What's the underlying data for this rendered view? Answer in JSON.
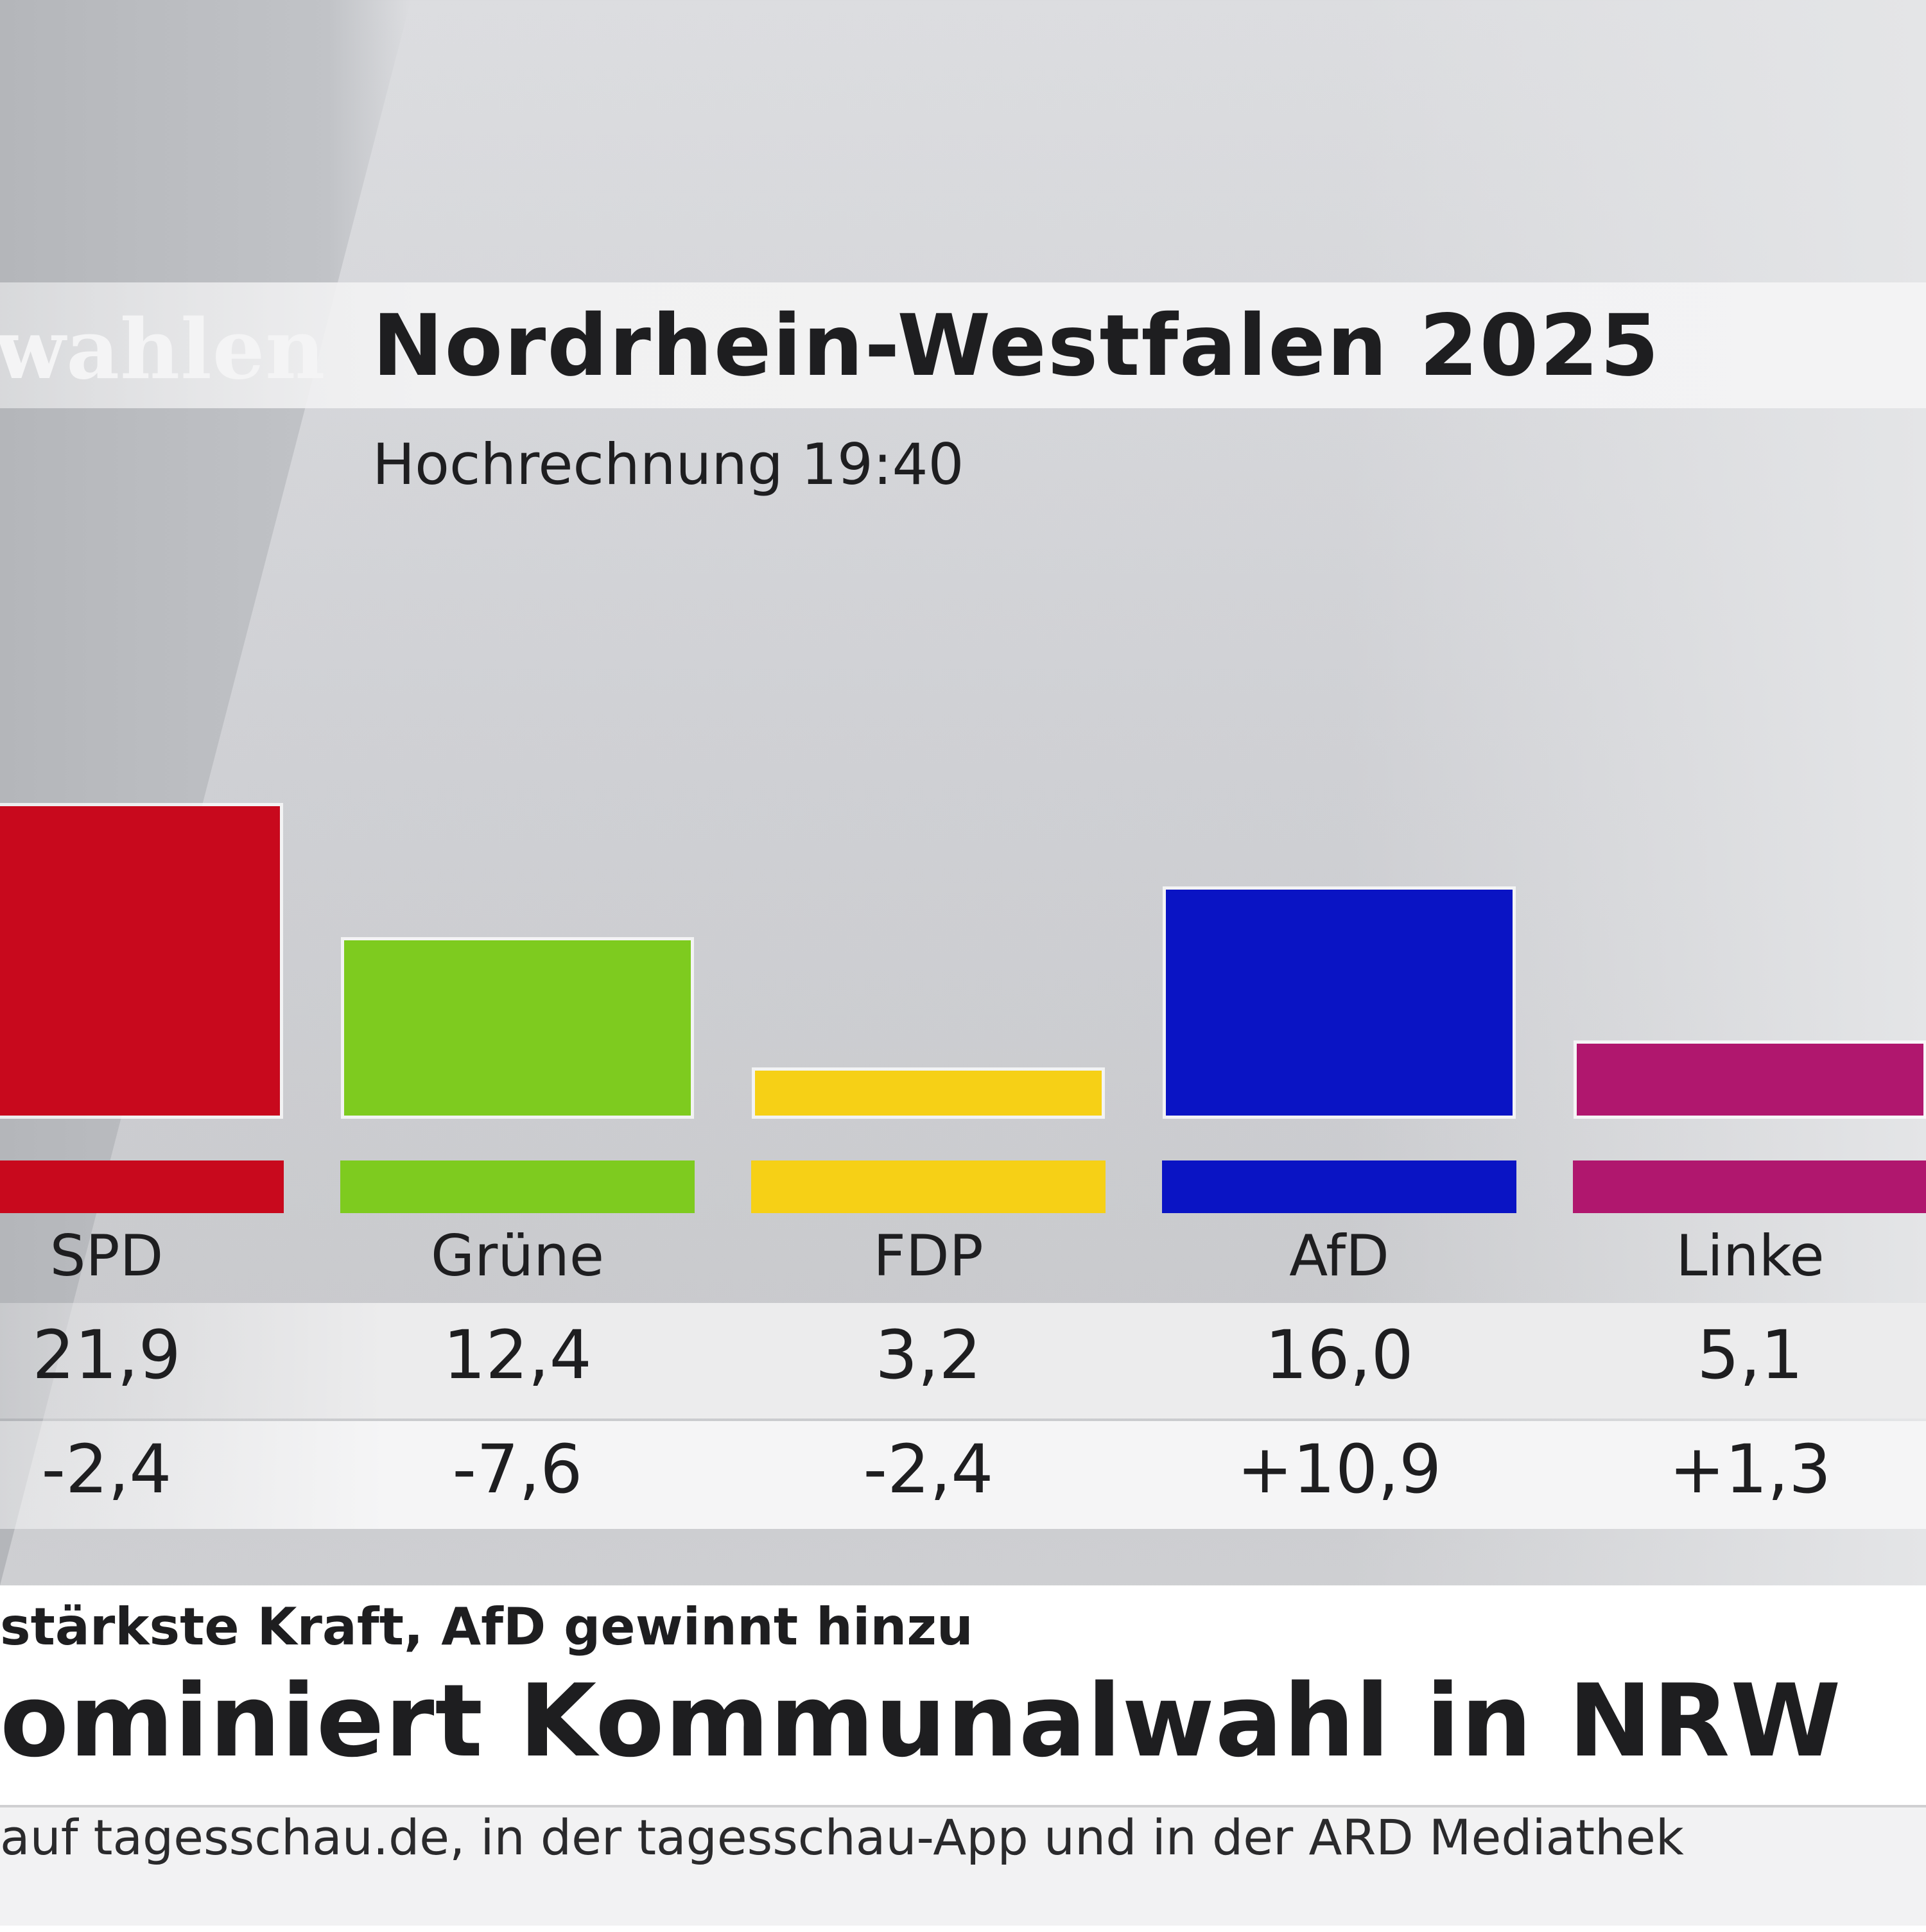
{
  "brand": {
    "text": "wahlen"
  },
  "header": {
    "title": "Nordrhein-Westfalen 2025",
    "subtitle": "Hochrechnung 19:40"
  },
  "chart_data": {
    "type": "bar",
    "title": "Nordrhein-Westfalen 2025",
    "subtitle": "Hochrechnung 19:40",
    "categories": [
      "SPD",
      "Grüne",
      "FDP",
      "AfD",
      "Linke"
    ],
    "values": [
      21.9,
      12.4,
      3.2,
      16.0,
      5.1
    ],
    "values_label": [
      "21,9",
      "12,4",
      "3,2",
      "16,0",
      "5,1"
    ],
    "changes_label": [
      "-2,4",
      "-7,6",
      "-2,4",
      "+10,9",
      "+1,3"
    ],
    "colors": [
      "#c8091d",
      "#7ecb1f",
      "#f6d016",
      "#0a14c4",
      "#b0176e"
    ],
    "ylim": [
      0,
      30
    ],
    "xlabel": "",
    "ylabel": ""
  },
  "news": {
    "kicker": "stärkste Kraft, AfD gewinnt hinzu",
    "headline": "ominiert Kommunalwahl in NRW",
    "ticker": "auf tagesschau.de, in der tagesschau-App und in der ARD Mediathek"
  }
}
